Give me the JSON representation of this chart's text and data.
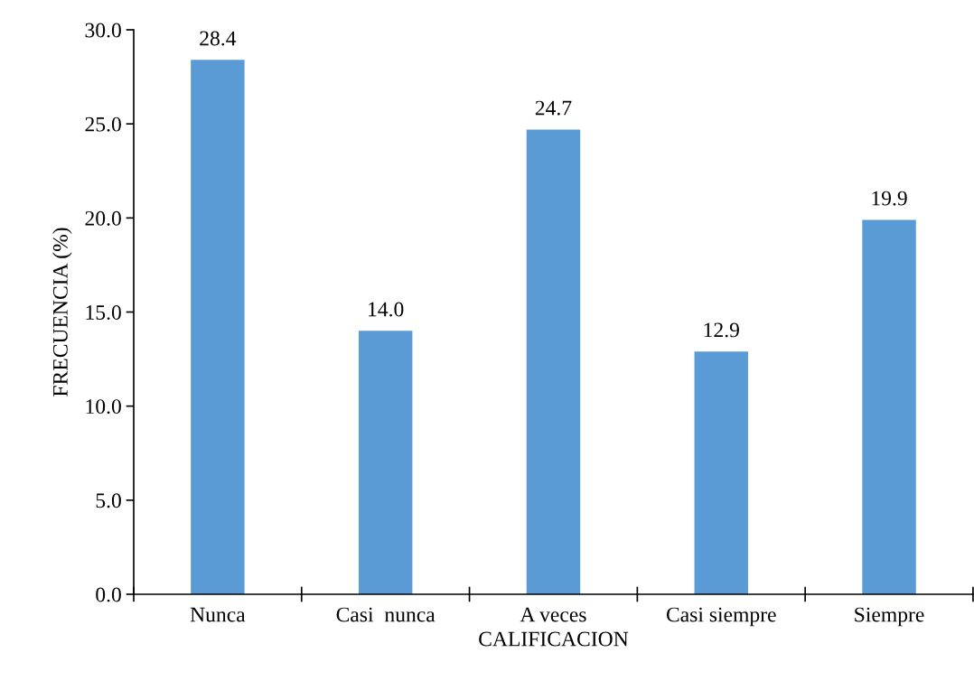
{
  "chart_data": {
    "type": "bar",
    "xlabel": "CALIFICACION",
    "ylabel": "FRECUENCIA (%)",
    "categories": [
      "Nunca",
      "Casi  nunca",
      "A veces",
      "Casi siempre",
      "Siempre"
    ],
    "values": [
      28.4,
      14.0,
      24.7,
      12.9,
      19.9
    ],
    "value_labels": [
      "28.4",
      "14.0",
      "24.7",
      "12.9",
      "19.9"
    ],
    "color": "#5b9bd5",
    "ylim": [
      0,
      30
    ],
    "yticks": [
      {
        "value": 0,
        "label": "0.0"
      },
      {
        "value": 5,
        "label": "5.0"
      },
      {
        "value": 10,
        "label": "10.0"
      },
      {
        "value": 15,
        "label": "15.0"
      },
      {
        "value": 20,
        "label": "20.0"
      },
      {
        "value": 25,
        "label": "25.0"
      },
      {
        "value": 30,
        "label": "30.0"
      }
    ],
    "grid": false,
    "legend": false
  }
}
